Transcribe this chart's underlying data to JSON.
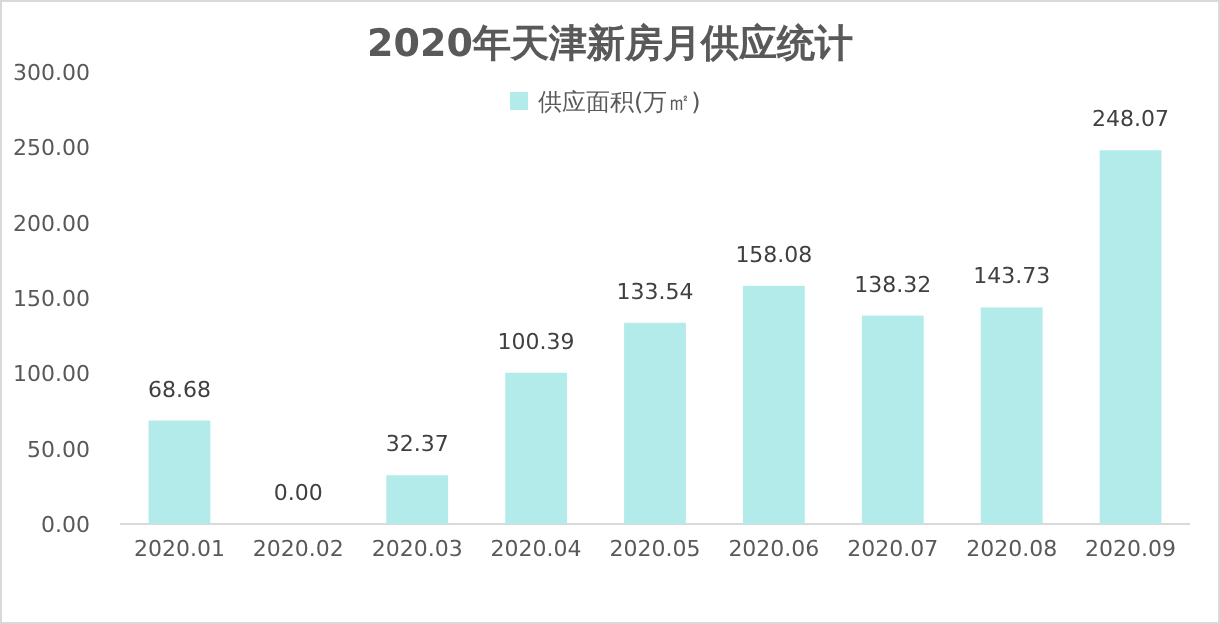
{
  "chart_data": {
    "type": "bar",
    "title": "2020年天津新房月供应统计",
    "categories": [
      "2020.01",
      "2020.02",
      "2020.03",
      "2020.04",
      "2020.05",
      "2020.06",
      "2020.07",
      "2020.08",
      "2020.09"
    ],
    "series": [
      {
        "name": "供应面积(万㎡)",
        "color": "#b3ebeb",
        "values": [
          68.68,
          0,
          32.37,
          100.39,
          133.54,
          158.08,
          138.32,
          143.73,
          248.07
        ],
        "value_labels": [
          "68.68",
          "0.00",
          "32.37",
          "100.39",
          "133.54",
          "158.08",
          "138.32",
          "143.73",
          "248.07"
        ]
      }
    ],
    "ylim": [
      0,
      300
    ],
    "yticks": [
      {
        "value": 0,
        "label": "0.00"
      },
      {
        "value": 50,
        "label": "50.00"
      },
      {
        "value": 100,
        "label": "100.00"
      },
      {
        "value": 150,
        "label": "150.00"
      },
      {
        "value": 200,
        "label": "200.00"
      },
      {
        "value": 250,
        "label": "250.00"
      },
      {
        "value": 300,
        "label": "300.00"
      }
    ],
    "legend": "top",
    "grid": false
  }
}
